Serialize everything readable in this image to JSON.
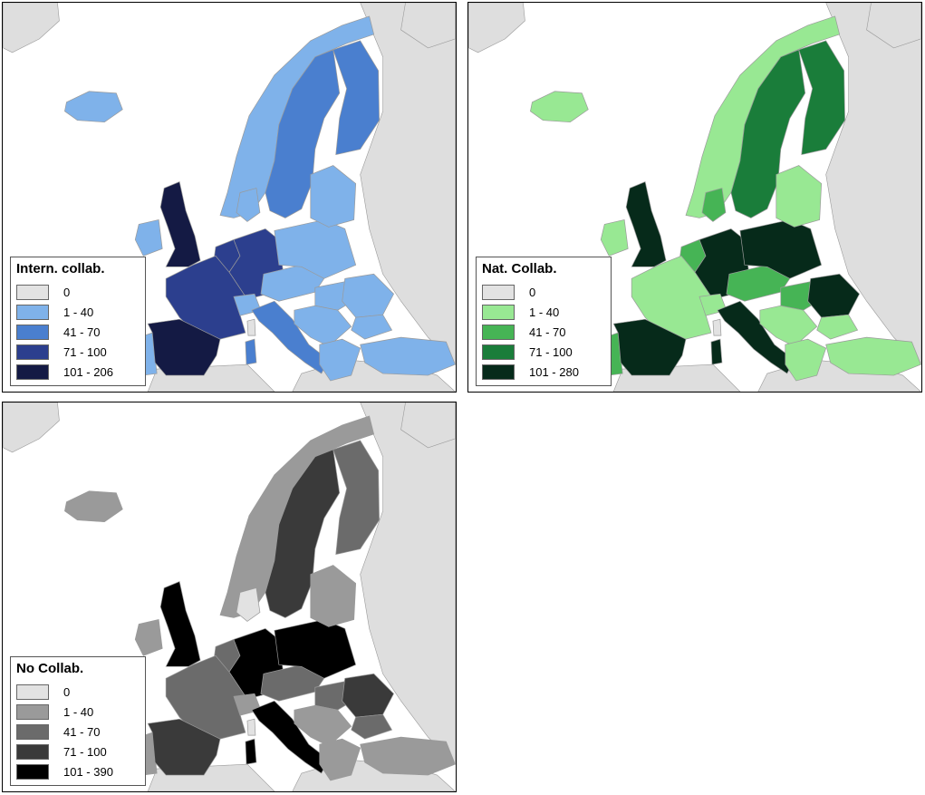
{
  "colors": {
    "sea": "#ffffff",
    "nonstudy": "#dedede",
    "border": "#9a9a9a"
  },
  "maps": [
    {
      "legend": {
        "title": "Intern. collab.",
        "classes": [
          {
            "label": "0",
            "color": "#e2e2e2"
          },
          {
            "label": "1 - 40",
            "color": "#7fb2ea"
          },
          {
            "label": "41 - 70",
            "color": "#4a7fcf"
          },
          {
            "label": "71 - 100",
            "color": "#2c3f8e"
          },
          {
            "label": "101 - 206",
            "color": "#141a44"
          }
        ]
      },
      "country_class": {
        "iceland": 1,
        "norway": 1,
        "sweden": 2,
        "finland": 2,
        "denmark": 1,
        "uk": 4,
        "ireland": 1,
        "portugal": 1,
        "spain": 4,
        "france": 3,
        "benelux": 3,
        "germany": 3,
        "switzerland": 1,
        "italy": 2,
        "poland": 1,
        "baltics": 1,
        "czech_austria": 1,
        "hungary": 1,
        "romania": 1,
        "balkans": 1,
        "bulgaria": 1,
        "greece": 1,
        "turkey": 1,
        "sardinia": 2,
        "corsica": 0
      }
    },
    {
      "legend": {
        "title": "Nat. Collab.",
        "classes": [
          {
            "label": "0",
            "color": "#e2e2e2"
          },
          {
            "label": "1 - 40",
            "color": "#98e893"
          },
          {
            "label": "41 - 70",
            "color": "#46b455"
          },
          {
            "label": "71 - 100",
            "color": "#1a7d3a"
          },
          {
            "label": "101 - 280",
            "color": "#062a1a"
          }
        ]
      },
      "country_class": {
        "iceland": 1,
        "norway": 1,
        "sweden": 3,
        "finland": 3,
        "denmark": 2,
        "uk": 4,
        "ireland": 1,
        "portugal": 2,
        "spain": 4,
        "france": 1,
        "benelux": 2,
        "germany": 4,
        "switzerland": 1,
        "italy": 4,
        "poland": 4,
        "baltics": 1,
        "czech_austria": 2,
        "hungary": 2,
        "romania": 4,
        "balkans": 1,
        "bulgaria": 1,
        "greece": 1,
        "turkey": 1,
        "sardinia": 4,
        "corsica": 0
      }
    },
    {
      "legend": {
        "title": "No Collab.",
        "classes": [
          {
            "label": "0",
            "color": "#e2e2e2"
          },
          {
            "label": "1 - 40",
            "color": "#9a9a9a"
          },
          {
            "label": "41 - 70",
            "color": "#6b6b6b"
          },
          {
            "label": "71 - 100",
            "color": "#3a3a3a"
          },
          {
            "label": "101 - 390",
            "color": "#000000"
          }
        ]
      },
      "country_class": {
        "iceland": 1,
        "norway": 1,
        "sweden": 3,
        "finland": 2,
        "denmark": 0,
        "uk": 4,
        "ireland": 1,
        "portugal": 1,
        "spain": 3,
        "france": 2,
        "benelux": 2,
        "germany": 4,
        "switzerland": 1,
        "italy": 4,
        "poland": 4,
        "baltics": 1,
        "czech_austria": 2,
        "hungary": 2,
        "romania": 3,
        "balkans": 1,
        "bulgaria": 2,
        "greece": 1,
        "turkey": 1,
        "sardinia": 4,
        "corsica": 0
      }
    }
  ]
}
